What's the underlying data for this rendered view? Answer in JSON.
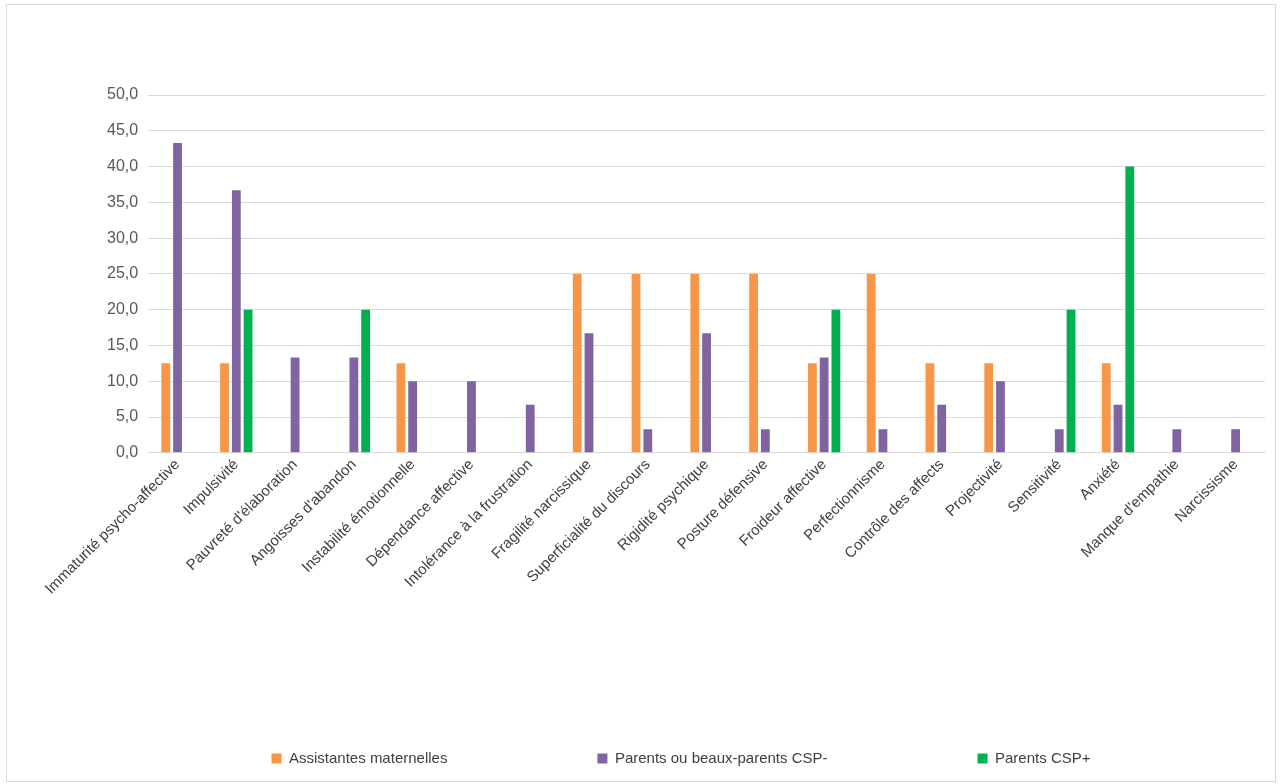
{
  "chart_data": {
    "type": "bar",
    "categories": [
      "Immaturité psycho-affective",
      "Impulsivité",
      "Pauvreté d'élaboration",
      "Angoisses d'abandon",
      "Instabilité émotionnelle",
      "Dépendance affective",
      "Intolérance à la frustration",
      "Fragilité narcissique",
      "Superficialité du discours",
      "Rigidité psychique",
      "Posture défensive",
      "Froideur affective",
      "Perfectionnisme",
      "Contrôle des affects",
      "Projectivité",
      "Sensitivité",
      "Anxiété",
      "Manque d'empathie",
      "Narcissisme"
    ],
    "series": [
      {
        "name": "Assistantes maternelles",
        "color": "#f79646",
        "values": [
          12.5,
          12.5,
          0,
          0,
          12.5,
          0,
          0,
          25,
          25,
          25,
          25,
          12.5,
          25,
          12.5,
          12.5,
          0,
          12.5,
          0,
          0
        ]
      },
      {
        "name": "Parents ou beaux-parents CSP-",
        "color": "#8064a2",
        "values": [
          43.3,
          36.7,
          13.3,
          13.3,
          10,
          10,
          6.7,
          16.7,
          3.3,
          16.7,
          3.3,
          13.3,
          3.3,
          6.7,
          10,
          3.3,
          6.7,
          3.3,
          3.3
        ]
      },
      {
        "name": "Parents CSP+",
        "color": "#00b050",
        "values": [
          0,
          20,
          0,
          20,
          0,
          0,
          0,
          0,
          0,
          0,
          0,
          20,
          0,
          0,
          0,
          20,
          40,
          0,
          0
        ]
      }
    ],
    "ylim": [
      0,
      50
    ],
    "yticks": [
      {
        "value": 0,
        "label": "0,0"
      },
      {
        "value": 5,
        "label": "5,0"
      },
      {
        "value": 10,
        "label": "10,0"
      },
      {
        "value": 15,
        "label": "15,0"
      },
      {
        "value": 20,
        "label": "20,0"
      },
      {
        "value": 25,
        "label": "25,0"
      },
      {
        "value": 30,
        "label": "30,0"
      },
      {
        "value": 35,
        "label": "35,0"
      },
      {
        "value": 40,
        "label": "40,0"
      },
      {
        "value": 45,
        "label": "45,0"
      },
      {
        "value": 50,
        "label": "50,0"
      }
    ],
    "grid": "y",
    "legend": "bottom"
  }
}
